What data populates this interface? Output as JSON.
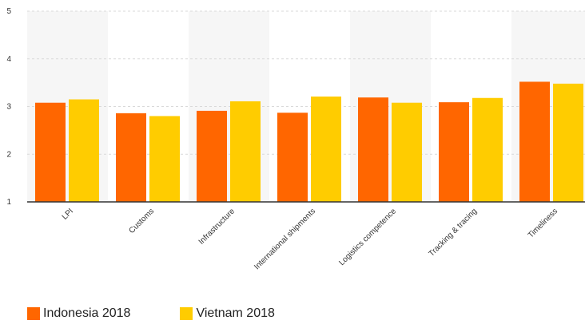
{
  "chart_data": {
    "type": "bar",
    "title": "",
    "xlabel": "",
    "ylabel": "",
    "ylim": [
      1,
      5
    ],
    "yticks": [
      1,
      2,
      3,
      4,
      5
    ],
    "grid": true,
    "legend_position": "bottom-left",
    "categories": [
      "LPI",
      "Customs",
      "Infrastructure",
      "International shipments",
      "Logistics competence",
      "Tracking & tracing",
      "Timeliness"
    ],
    "series": [
      {
        "name": "Indonesia 2018",
        "color": "#ff6600",
        "values": [
          3.08,
          2.86,
          2.91,
          2.87,
          3.19,
          3.09,
          3.52
        ]
      },
      {
        "name": "Vietnam 2018",
        "color": "#ffcc00",
        "values": [
          3.15,
          2.8,
          3.11,
          3.21,
          3.08,
          3.18,
          3.48
        ]
      }
    ]
  }
}
